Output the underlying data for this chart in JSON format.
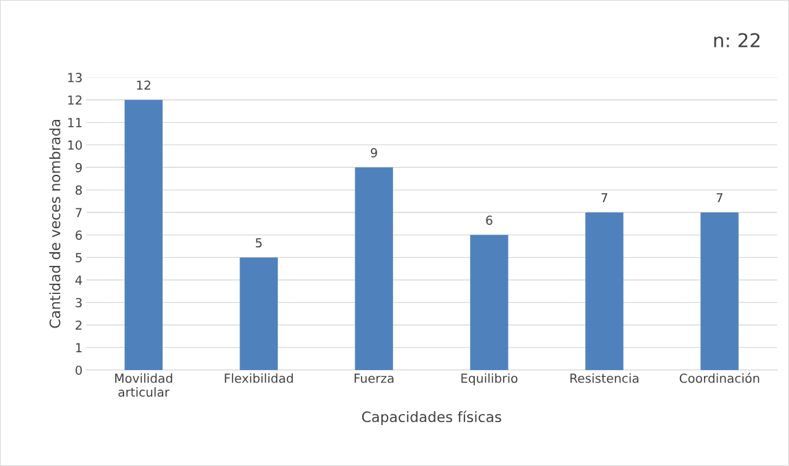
{
  "chart_data": {
    "type": "bar",
    "xlabel": "Capacidades físicas",
    "ylabel": "Cantidad de veces nombrada",
    "annotations": [
      "n: 22"
    ],
    "categories": [
      "Movilidad\narticular",
      "Flexibilidad",
      "Fuerza",
      "Equilibrio",
      "Resistencia",
      "Coordinación"
    ],
    "values": [
      12,
      5,
      9,
      6,
      7,
      7
    ],
    "color": "#4f81bd",
    "ylim": [
      0,
      13
    ],
    "yticks": [
      0,
      1,
      2,
      3,
      4,
      5,
      6,
      7,
      8,
      9,
      10,
      11,
      12,
      13
    ],
    "grid": "y",
    "data_labels": true
  }
}
